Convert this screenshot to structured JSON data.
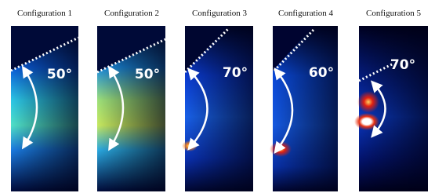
{
  "panels": [
    {
      "label": "Configuration 1",
      "angle": "50°"
    },
    {
      "label": "Configuration 2",
      "angle": "50°"
    },
    {
      "label": "Configuration 3",
      "angle": "70°"
    },
    {
      "label": "Configuration 4",
      "angle": "60°"
    },
    {
      "label": "Configuration 5",
      "angle": "70°"
    }
  ]
}
